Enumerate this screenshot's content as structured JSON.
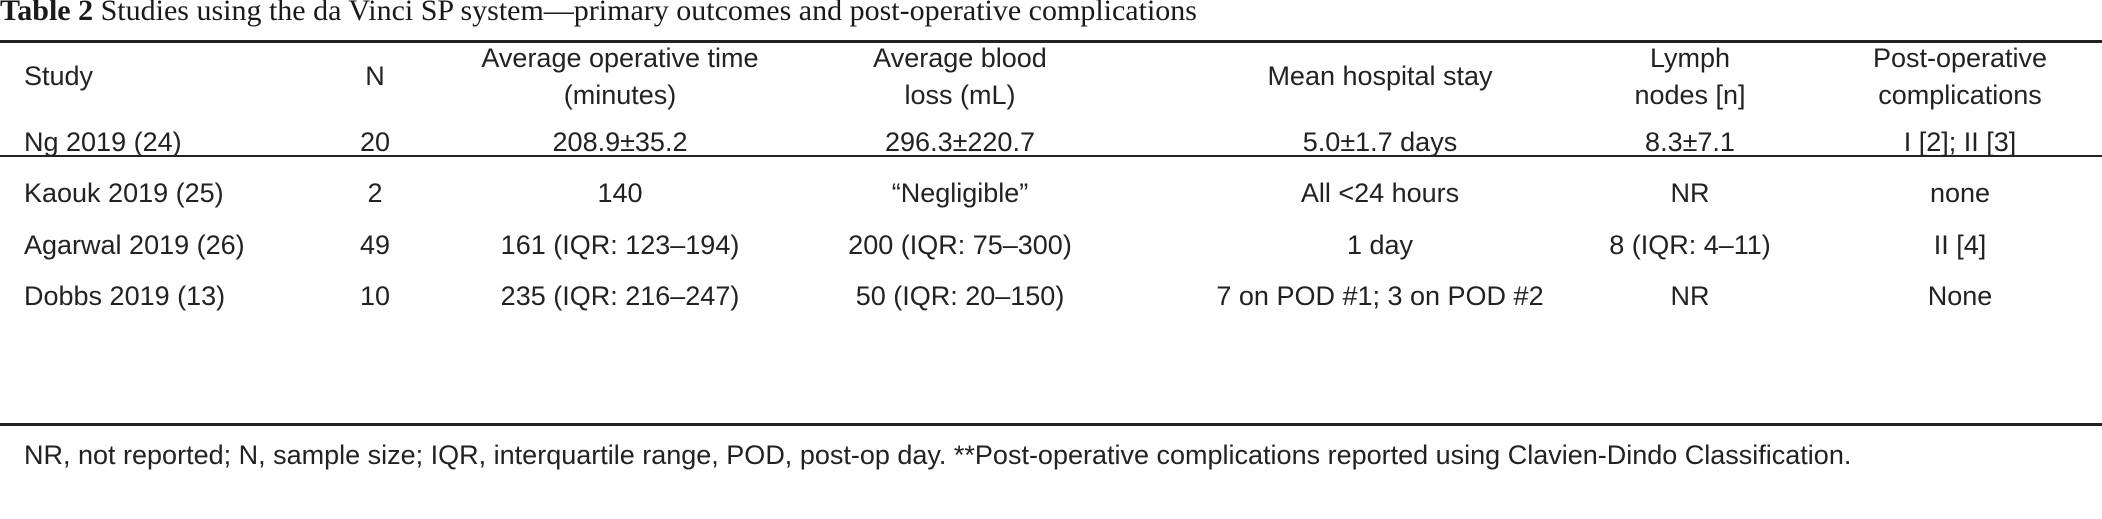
{
  "caption": {
    "label": "Table 2",
    "text": " Studies using the da Vinci SP system—primary outcomes and post-operative complications"
  },
  "headers": [
    [
      "Study"
    ],
    [
      "N"
    ],
    [
      "Average operative time",
      "(minutes)"
    ],
    [
      "Average blood",
      "loss (mL)"
    ],
    [
      "Mean hospital stay"
    ],
    [
      "Lymph",
      "nodes [n]"
    ],
    [
      "Post-operative",
      "complications"
    ]
  ],
  "rows": [
    [
      "Ng 2019 (24)",
      "20",
      "208.9±35.2",
      "296.3±220.7",
      "5.0±1.7 days",
      "8.3±7.1",
      "I [2]; II [3]"
    ],
    [
      "Kaouk 2019 (25)",
      "2",
      "140",
      "“Negligible”",
      "All <24 hours",
      "NR",
      "none"
    ],
    [
      "Agarwal 2019 (26)",
      "49",
      "161 (IQR: 123–194)",
      "200 (IQR: 75–300)",
      "1 day",
      "8 (IQR: 4–11)",
      "II [4]"
    ],
    [
      "Dobbs 2019 (13)",
      "10",
      "235 (IQR: 216–247)",
      "50 (IQR: 20–150)",
      "7 on POD #1; 3 on POD #2",
      "NR",
      "None"
    ]
  ],
  "footnote": "NR, not reported; N, sample size; IQR, interquartile range, POD, post-op day. **Post-operative complications reported using Clavien-Dindo Classification."
}
